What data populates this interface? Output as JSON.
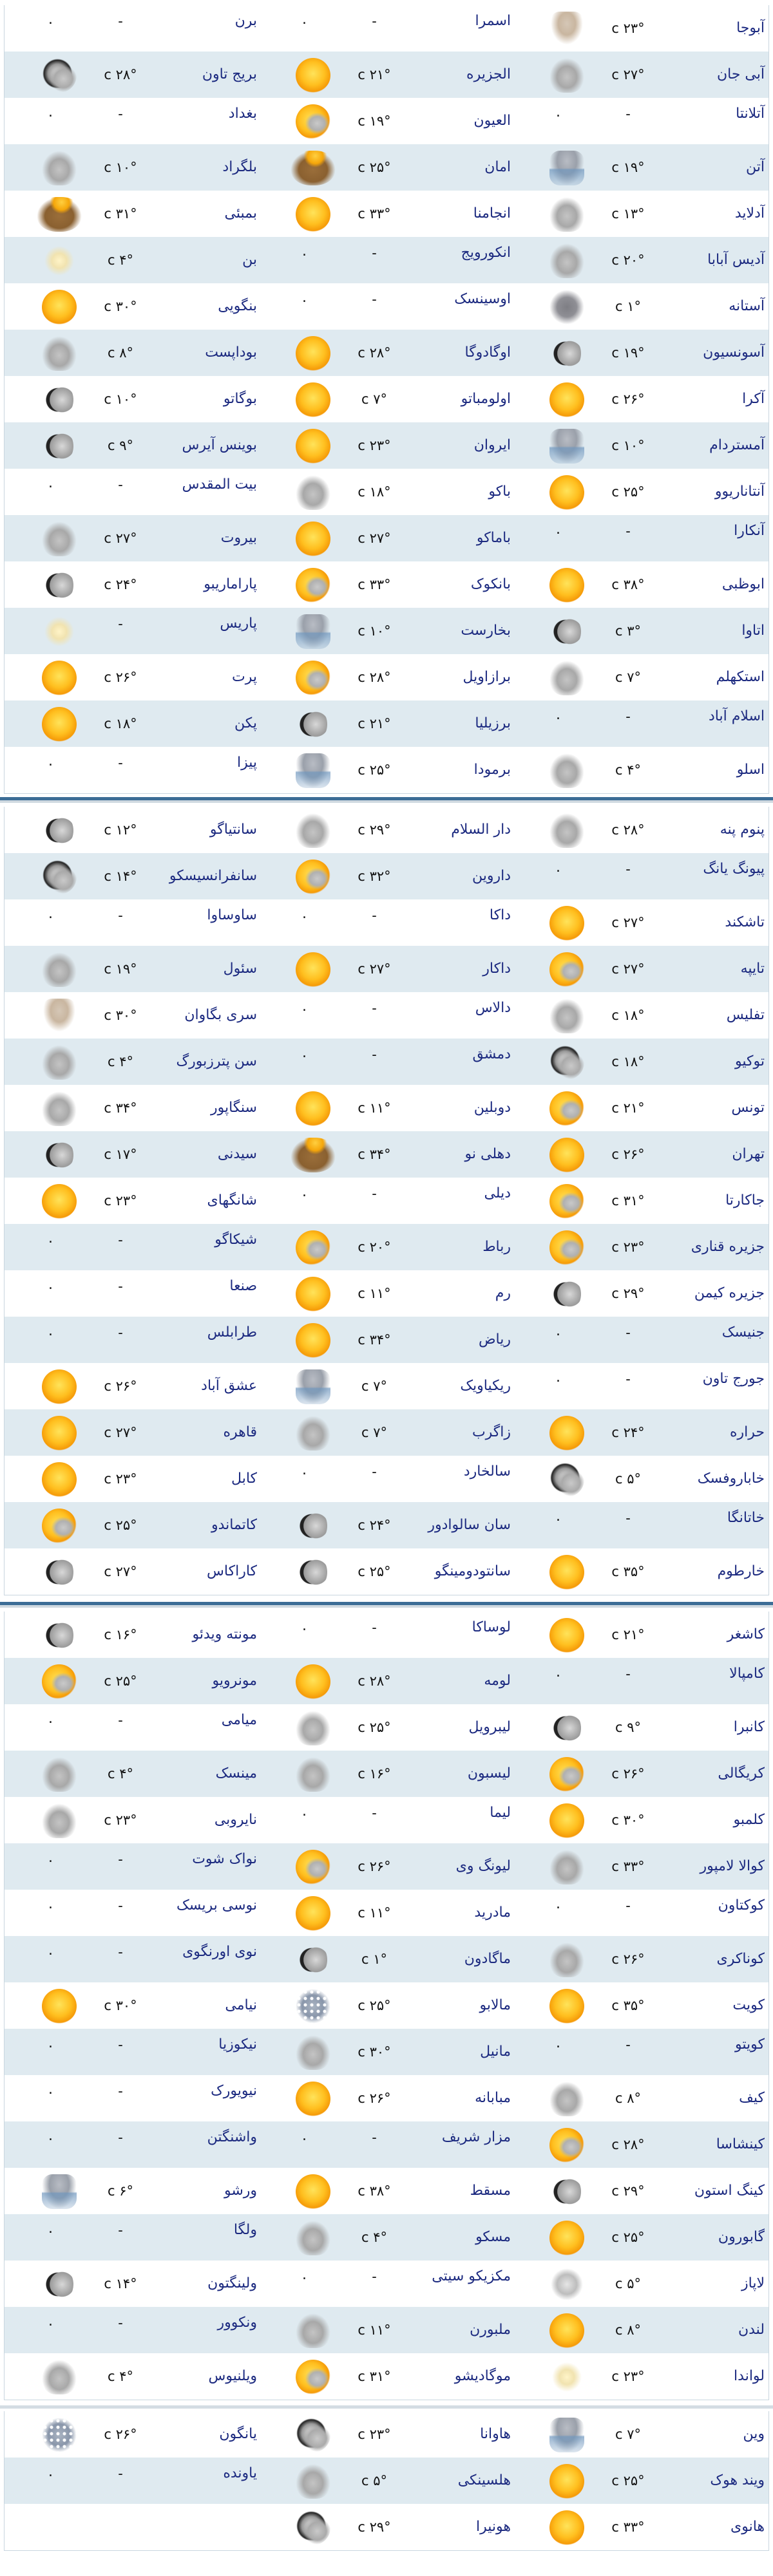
{
  "placeholder_dash": "-",
  "placeholder_dot": ".",
  "panels": [
    {
      "rows": [
        [
          {
            "n": "آبوجا",
            "t": "۲۳° c",
            "i": "tornado"
          },
          {
            "n": "اسمرا",
            "t": "-",
            "i": "none"
          },
          {
            "n": "برن",
            "t": "-",
            "i": "none"
          }
        ],
        [
          {
            "n": "آبی جان",
            "t": "۲۷° c",
            "i": "cloudy"
          },
          {
            "n": "الجزیره",
            "t": "۲۱° c",
            "i": "sun"
          },
          {
            "n": "بریج تاون",
            "t": "۲۸° c",
            "i": "moon-cloud"
          }
        ],
        [
          {
            "n": "آتلانتا",
            "t": "-",
            "i": "none"
          },
          {
            "n": "العیون",
            "t": "۱۹° c",
            "i": "sun-cloud"
          },
          {
            "n": "بغداد",
            "t": "-",
            "i": "none"
          }
        ],
        [
          {
            "n": "آتن",
            "t": "۱۹° c",
            "i": "rain"
          },
          {
            "n": "امان",
            "t": "۲۵° c",
            "i": "dust"
          },
          {
            "n": "بلگراد",
            "t": "۱۰° c",
            "i": "cloudy"
          }
        ],
        [
          {
            "n": "آدلاید",
            "t": "۱۳° c",
            "i": "cloudy"
          },
          {
            "n": "انجامنا",
            "t": "۳۳° c",
            "i": "sun"
          },
          {
            "n": "بمبئی",
            "t": "۳۱° c",
            "i": "dust"
          }
        ],
        [
          {
            "n": "آدیس آبابا",
            "t": "۲۰° c",
            "i": "cloudy"
          },
          {
            "n": "انکورویج",
            "t": "-",
            "i": "none"
          },
          {
            "n": "بن",
            "t": "۴° c",
            "i": "haze"
          }
        ],
        [
          {
            "n": "آستانه",
            "t": "۱° c",
            "i": "cloudy-dark"
          },
          {
            "n": "اوسینسک",
            "t": "-",
            "i": "none"
          },
          {
            "n": "بنگویی",
            "t": "۳۰° c",
            "i": "sun"
          }
        ],
        [
          {
            "n": "آسونسیون",
            "t": "۱۹° c",
            "i": "moon"
          },
          {
            "n": "اوگادوگا",
            "t": "۲۸° c",
            "i": "sun"
          },
          {
            "n": "بوداپست",
            "t": "۸° c",
            "i": "cloudy"
          }
        ],
        [
          {
            "n": "آکرا",
            "t": "۲۶° c",
            "i": "sun"
          },
          {
            "n": "اولومباتو",
            "t": "۷° c",
            "i": "sun"
          },
          {
            "n": "بوگاتو",
            "t": "۱۰° c",
            "i": "moon"
          }
        ],
        [
          {
            "n": "آمستردام",
            "t": "۱۰° c",
            "i": "rain"
          },
          {
            "n": "ایروان",
            "t": "۲۳° c",
            "i": "sun"
          },
          {
            "n": "بوینس آیرس",
            "t": "۹° c",
            "i": "moon"
          }
        ],
        [
          {
            "n": "آنتاناریوو",
            "t": "۲۵° c",
            "i": "sun"
          },
          {
            "n": "باکو",
            "t": "۱۸° c",
            "i": "cloudy"
          },
          {
            "n": "بیت المقدس",
            "t": "-",
            "i": "none"
          }
        ],
        [
          {
            "n": "آنکارا",
            "t": "-",
            "i": "none"
          },
          {
            "n": "باماکو",
            "t": "۲۷° c",
            "i": "sun"
          },
          {
            "n": "بیروت",
            "t": "۲۷° c",
            "i": "cloudy"
          }
        ],
        [
          {
            "n": "ابوظبی",
            "t": "۳۸° c",
            "i": "sun"
          },
          {
            "n": "بانکوک",
            "t": "۳۳° c",
            "i": "sun-cloud"
          },
          {
            "n": "پاراماریبو",
            "t": "۲۴° c",
            "i": "moon"
          }
        ],
        [
          {
            "n": "اتاوا",
            "t": "۳° c",
            "i": "moon"
          },
          {
            "n": "بخارست",
            "t": "۱۰° c",
            "i": "rain"
          },
          {
            "n": "پاریس",
            "t": "-",
            "i": "haze"
          }
        ],
        [
          {
            "n": "استکهلم",
            "t": "۷° c",
            "i": "cloudy"
          },
          {
            "n": "برازاویل",
            "t": "۲۸° c",
            "i": "sun-cloud"
          },
          {
            "n": "پرت",
            "t": "۲۶° c",
            "i": "sun"
          }
        ],
        [
          {
            "n": "اسلام آباد",
            "t": "-",
            "i": "none"
          },
          {
            "n": "برزیلیا",
            "t": "۲۱° c",
            "i": "moon"
          },
          {
            "n": "پکن",
            "t": "۱۸° c",
            "i": "sun"
          }
        ],
        [
          {
            "n": "اسلو",
            "t": "۴° c",
            "i": "cloudy"
          },
          {
            "n": "برمودا",
            "t": "۲۵° c",
            "i": "rain"
          },
          {
            "n": "پیزا",
            "t": "-",
            "i": "none"
          }
        ]
      ]
    },
    {
      "rows": [
        [
          {
            "n": "پنوم پنه",
            "t": "۲۸° c",
            "i": "cloudy"
          },
          {
            "n": "دار السلام",
            "t": "۲۹° c",
            "i": "cloudy"
          },
          {
            "n": "سانتیاگو",
            "t": "۱۲° c",
            "i": "moon"
          }
        ],
        [
          {
            "n": "پیونگ یانگ",
            "t": "-",
            "i": "none"
          },
          {
            "n": "داروین",
            "t": "۳۲° c",
            "i": "sun-cloud"
          },
          {
            "n": "سانفرانسیسکو",
            "t": "۱۴° c",
            "i": "moon-cloud"
          }
        ],
        [
          {
            "n": "تاشکند",
            "t": "۲۷° c",
            "i": "sun"
          },
          {
            "n": "داکا",
            "t": "-",
            "i": "none"
          },
          {
            "n": "ساوساوا",
            "t": "-",
            "i": "none"
          }
        ],
        [
          {
            "n": "تایپه",
            "t": "۲۷° c",
            "i": "sun-cloud"
          },
          {
            "n": "داکار",
            "t": "۲۷° c",
            "i": "sun"
          },
          {
            "n": "سئول",
            "t": "۱۹° c",
            "i": "cloudy"
          }
        ],
        [
          {
            "n": "تفلیس",
            "t": "۱۸° c",
            "i": "cloudy"
          },
          {
            "n": "دالاس",
            "t": "-",
            "i": "none"
          },
          {
            "n": "سری بگاوان",
            "t": "۳۰° c",
            "i": "tornado"
          }
        ],
        [
          {
            "n": "توکیو",
            "t": "۱۸° c",
            "i": "moon-cloud"
          },
          {
            "n": "دمشق",
            "t": "-",
            "i": "none"
          },
          {
            "n": "سن پترزبورگ",
            "t": "۴° c",
            "i": "cloudy"
          }
        ],
        [
          {
            "n": "تونس",
            "t": "۲۱° c",
            "i": "sun-cloud"
          },
          {
            "n": "دوبلین",
            "t": "۱۱° c",
            "i": "sun"
          },
          {
            "n": "سنگاپور",
            "t": "۳۴° c",
            "i": "cloudy"
          }
        ],
        [
          {
            "n": "تهران",
            "t": "۲۶° c",
            "i": "sun"
          },
          {
            "n": "دهلی نو",
            "t": "۳۴° c",
            "i": "dust"
          },
          {
            "n": "سیدنی",
            "t": "۱۷° c",
            "i": "moon"
          }
        ],
        [
          {
            "n": "جاکارتا",
            "t": "۳۱° c",
            "i": "sun-cloud"
          },
          {
            "n": "دیلی",
            "t": "-",
            "i": "none"
          },
          {
            "n": "شانگهای",
            "t": "۲۳° c",
            "i": "sun"
          }
        ],
        [
          {
            "n": "جزیره قناری",
            "t": "۲۳° c",
            "i": "sun-cloud"
          },
          {
            "n": "رباط",
            "t": "۲۰° c",
            "i": "sun-cloud"
          },
          {
            "n": "شیکاگو",
            "t": "-",
            "i": "none"
          }
        ],
        [
          {
            "n": "جزیره کیمن",
            "t": "۲۹° c",
            "i": "moon"
          },
          {
            "n": "رم",
            "t": "۱۱° c",
            "i": "sun"
          },
          {
            "n": "صنعا",
            "t": "-",
            "i": "none"
          }
        ],
        [
          {
            "n": "جنیسک",
            "t": "-",
            "i": "none"
          },
          {
            "n": "ریاض",
            "t": "۳۴° c",
            "i": "sun"
          },
          {
            "n": "طرابلس",
            "t": "-",
            "i": "none"
          }
        ],
        [
          {
            "n": "جورج تاون",
            "t": "-",
            "i": "none"
          },
          {
            "n": "ریکیاویک",
            "t": "۷° c",
            "i": "rain"
          },
          {
            "n": "عشق آباد",
            "t": "۲۶° c",
            "i": "sun"
          }
        ],
        [
          {
            "n": "حراره",
            "t": "۲۴° c",
            "i": "sun"
          },
          {
            "n": "زاگرب",
            "t": "۷° c",
            "i": "cloudy"
          },
          {
            "n": "قاهره",
            "t": "۲۷° c",
            "i": "sun"
          }
        ],
        [
          {
            "n": "خاباروفسک",
            "t": "۵° c",
            "i": "moon-cloud"
          },
          {
            "n": "سالخارد",
            "t": "-",
            "i": "none"
          },
          {
            "n": "کابل",
            "t": "۲۳° c",
            "i": "sun"
          }
        ],
        [
          {
            "n": "خاتانگا",
            "t": "-",
            "i": "none"
          },
          {
            "n": "سان سالوادور",
            "t": "۲۴° c",
            "i": "moon"
          },
          {
            "n": "کاتماندو",
            "t": "۲۵° c",
            "i": "sun-cloud"
          }
        ],
        [
          {
            "n": "خارطوم",
            "t": "۳۵° c",
            "i": "sun"
          },
          {
            "n": "سانتودومینگو",
            "t": "۲۵° c",
            "i": "moon"
          },
          {
            "n": "کاراکاس",
            "t": "۲۷° c",
            "i": "moon"
          }
        ]
      ]
    },
    {
      "rows": [
        [
          {
            "n": "کاشغر",
            "t": "۲۱° c",
            "i": "sun"
          },
          {
            "n": "لوساکا",
            "t": "-",
            "i": "none"
          },
          {
            "n": "مونته ویدئو",
            "t": "۱۶° c",
            "i": "moon"
          }
        ],
        [
          {
            "n": "کامپالا",
            "t": "-",
            "i": "none"
          },
          {
            "n": "لومه",
            "t": "۲۸° c",
            "i": "sun"
          },
          {
            "n": "مونرویو",
            "t": "۲۵° c",
            "i": "sun-cloud"
          }
        ],
        [
          {
            "n": "کانبرا",
            "t": "۹° c",
            "i": "moon"
          },
          {
            "n": "لیبرویل",
            "t": "۲۵° c",
            "i": "cloudy"
          },
          {
            "n": "میامی",
            "t": "-",
            "i": "none"
          }
        ],
        [
          {
            "n": "کریگالی",
            "t": "۲۶° c",
            "i": "sun-cloud"
          },
          {
            "n": "لیسبون",
            "t": "۱۶° c",
            "i": "cloudy"
          },
          {
            "n": "مینسک",
            "t": "۴° c",
            "i": "cloudy"
          }
        ],
        [
          {
            "n": "کلمبو",
            "t": "۳۰° c",
            "i": "sun"
          },
          {
            "n": "لیما",
            "t": "-",
            "i": "none"
          },
          {
            "n": "نایروبی",
            "t": "۲۳° c",
            "i": "cloudy"
          }
        ],
        [
          {
            "n": "کوالا لامپور",
            "t": "۳۳° c",
            "i": "cloudy"
          },
          {
            "n": "لیونگ وی",
            "t": "۲۶° c",
            "i": "sun-cloud"
          },
          {
            "n": "نواک شوت",
            "t": "-",
            "i": "none"
          }
        ],
        [
          {
            "n": "کوکتاون",
            "t": "-",
            "i": "none"
          },
          {
            "n": "مادرید",
            "t": "۱۱° c",
            "i": "sun"
          },
          {
            "n": "نوسی بریسک",
            "t": "-",
            "i": "none"
          }
        ],
        [
          {
            "n": "کوناکری",
            "t": "۲۶° c",
            "i": "cloudy"
          },
          {
            "n": "ماگادون",
            "t": "۱° c",
            "i": "moon"
          },
          {
            "n": "نوی اورنگوی",
            "t": "-",
            "i": "none"
          }
        ],
        [
          {
            "n": "کویت",
            "t": "۳۵° c",
            "i": "sun"
          },
          {
            "n": "مالابو",
            "t": "۲۵° c",
            "i": "snow"
          },
          {
            "n": "نیامی",
            "t": "۳۰° c",
            "i": "sun"
          }
        ],
        [
          {
            "n": "کویتو",
            "t": "-",
            "i": "none"
          },
          {
            "n": "مانیل",
            "t": "۳۰° c",
            "i": "cloudy"
          },
          {
            "n": "نیکوزیا",
            "t": "-",
            "i": "none"
          }
        ],
        [
          {
            "n": "کیف",
            "t": "۸° c",
            "i": "cloudy"
          },
          {
            "n": "مبابانه",
            "t": "۲۶° c",
            "i": "sun"
          },
          {
            "n": "نیویورک",
            "t": "-",
            "i": "none"
          }
        ],
        [
          {
            "n": "کینشاسا",
            "t": "۲۸° c",
            "i": "sun-cloud"
          },
          {
            "n": "مزار شریف",
            "t": "-",
            "i": "none"
          },
          {
            "n": "واشنگتن",
            "t": "-",
            "i": "none"
          }
        ],
        [
          {
            "n": "کینگ استون",
            "t": "۲۹° c",
            "i": "moon"
          },
          {
            "n": "مسقط",
            "t": "۳۸° c",
            "i": "sun"
          },
          {
            "n": "ورشو",
            "t": "۶° c",
            "i": "rain"
          }
        ],
        [
          {
            "n": "گابورون",
            "t": "۲۵° c",
            "i": "sun"
          },
          {
            "n": "مسکو",
            "t": "۴° c",
            "i": "cloudy"
          },
          {
            "n": "ولگا",
            "t": "-",
            "i": "none"
          }
        ],
        [
          {
            "n": "لاپاز",
            "t": "۵° c",
            "i": "fog"
          },
          {
            "n": "مکزیکو سیتی",
            "t": "-",
            "i": "none"
          },
          {
            "n": "ولینگتون",
            "t": "۱۴° c",
            "i": "moon"
          }
        ],
        [
          {
            "n": "لندن",
            "t": "۸° c",
            "i": "sun"
          },
          {
            "n": "ملبورن",
            "t": "۱۱° c",
            "i": "cloudy"
          },
          {
            "n": "ونکوور",
            "t": "-",
            "i": "none"
          }
        ],
        [
          {
            "n": "لواندا",
            "t": "۲۳° c",
            "i": "haze"
          },
          {
            "n": "موگادیشو",
            "t": "۳۱° c",
            "i": "sun-cloud"
          },
          {
            "n": "ویلنیوس",
            "t": "۴° c",
            "i": "cloudy"
          }
        ]
      ]
    },
    {
      "rows": [
        [
          {
            "n": "وین",
            "t": "۷° c",
            "i": "rain"
          },
          {
            "n": "هاوانا",
            "t": "۲۳° c",
            "i": "moon-cloud"
          },
          {
            "n": "یانگون",
            "t": "۲۶° c",
            "i": "snow"
          }
        ],
        [
          {
            "n": "ویند هوک",
            "t": "۲۵° c",
            "i": "sun"
          },
          {
            "n": "هلسینکی",
            "t": "۵° c",
            "i": "cloudy"
          },
          {
            "n": "یاونده",
            "t": "-",
            "i": "none"
          }
        ],
        [
          {
            "n": "هانوی",
            "t": "۳۳° c",
            "i": "sun"
          },
          {
            "n": "هونیرا",
            "t": "۲۹° c",
            "i": "moon-cloud"
          },
          null
        ]
      ]
    }
  ]
}
